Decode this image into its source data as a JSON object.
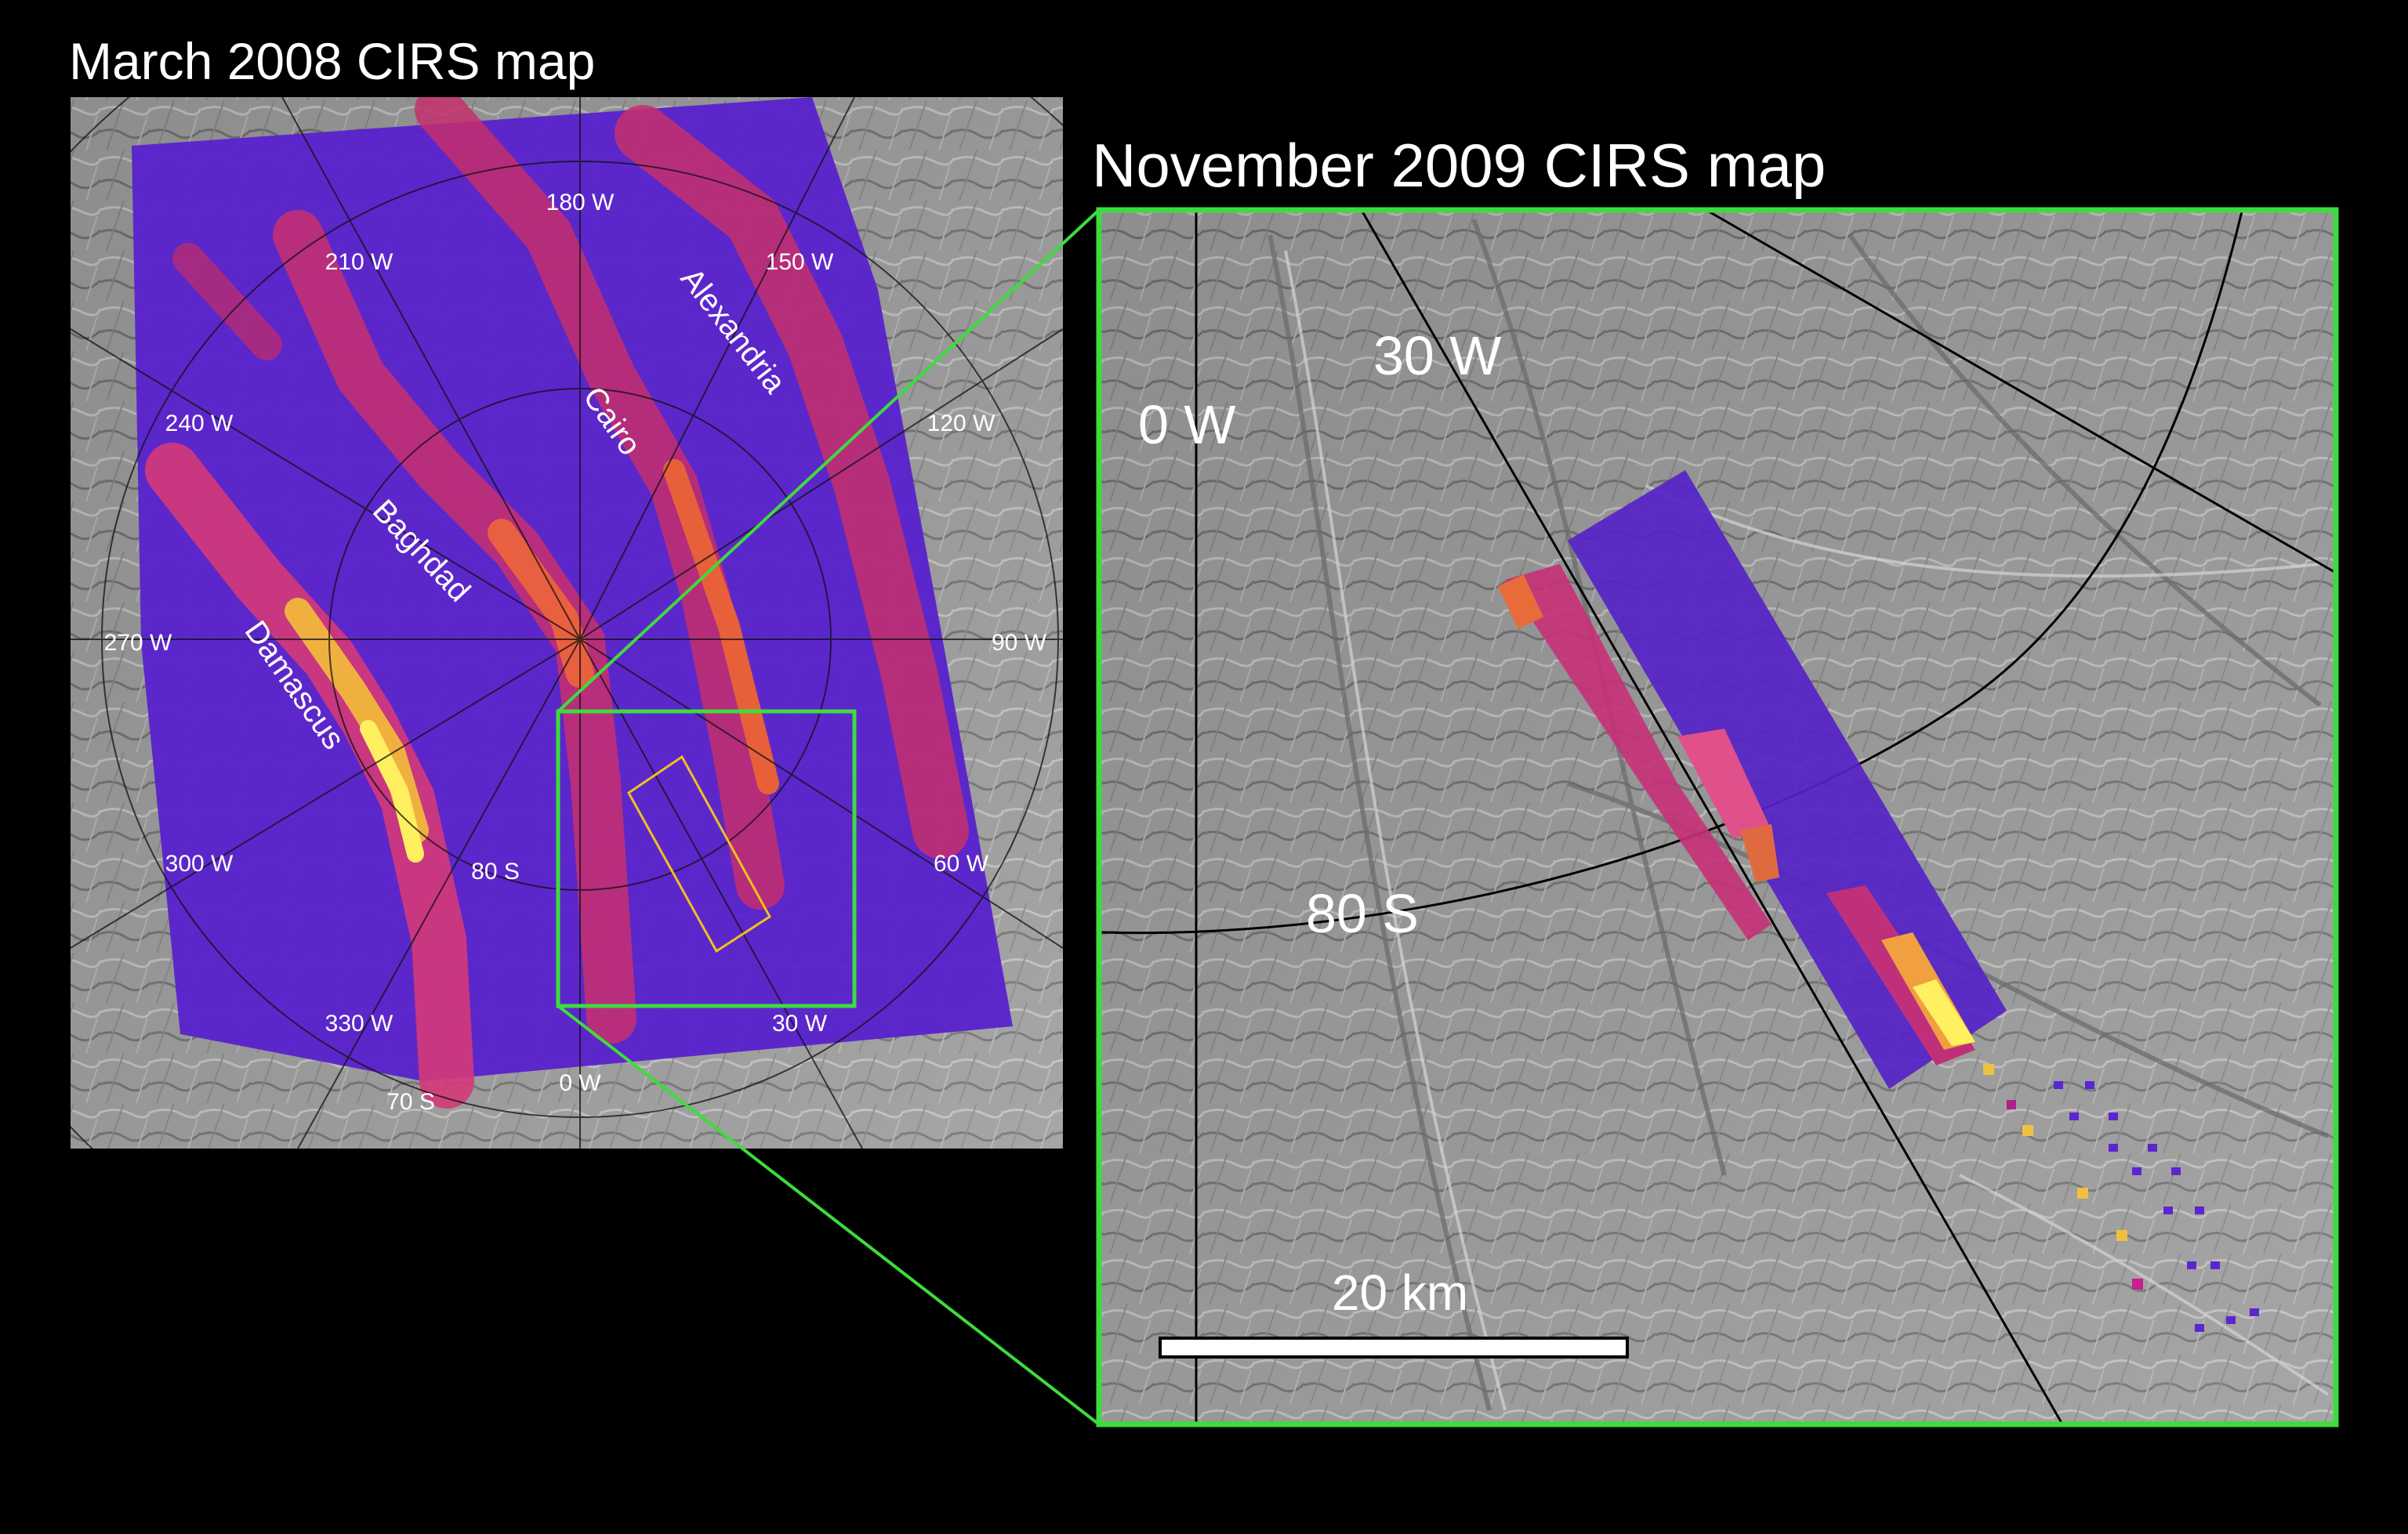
{
  "left_panel": {
    "title": "March 2008 CIRS map",
    "longitude_labels": [
      "180 W",
      "150 W",
      "210 W",
      "120 W",
      "240 W",
      "90 W",
      "270 W",
      "60 W",
      "300 W",
      "30 W",
      "330 W",
      "0 W"
    ],
    "latitude_labels": [
      "80 S",
      "70 S"
    ],
    "fracture_names": [
      "Alexandria",
      "Cairo",
      "Baghdad",
      "Damascus"
    ]
  },
  "right_panel": {
    "title": "November 2009 CIRS map",
    "longitude_labels": [
      "0 W",
      "30 W"
    ],
    "latitude_labels": [
      "80 S"
    ],
    "scale_bar": {
      "label": "20 km",
      "length_km": 20
    }
  },
  "colors": {
    "callout_box": "#3ddc3d",
    "detail_box": "#f0c020",
    "low_temperature": "#4a1cd0",
    "high_temperature": "#fff060"
  }
}
